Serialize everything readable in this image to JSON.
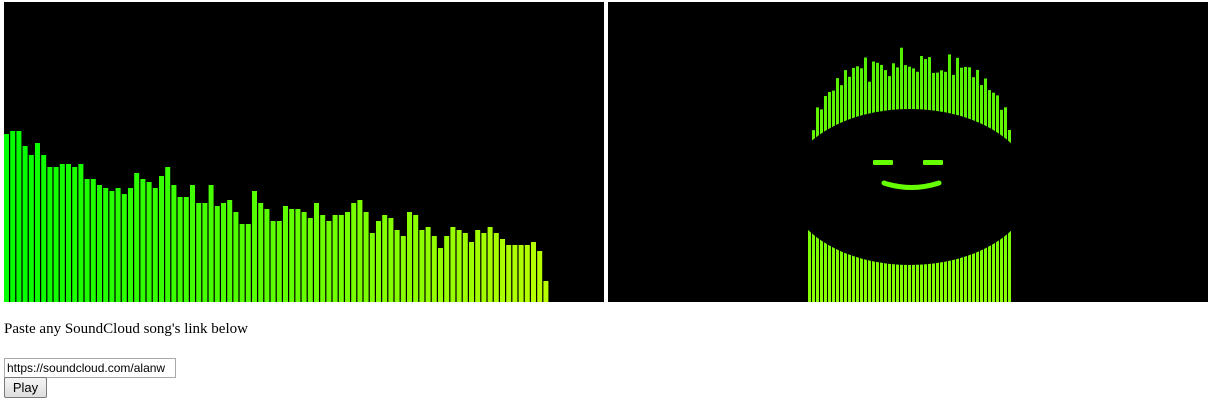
{
  "instructions": "Paste any SoundCloud song's link below",
  "url_input": {
    "value": "https://soundcloud.com/alanw"
  },
  "play_button": {
    "label": "Play"
  },
  "colors": {
    "background": "#000000",
    "bar_gradient_start": "#00ff00",
    "bar_gradient_end": "#ccff00",
    "face_green": "#66ff00"
  },
  "chart_data": {
    "type": "bar",
    "spectrum_levels": [
      0.56,
      0.57,
      0.57,
      0.52,
      0.49,
      0.53,
      0.49,
      0.45,
      0.45,
      0.46,
      0.46,
      0.45,
      0.46,
      0.41,
      0.41,
      0.39,
      0.38,
      0.37,
      0.38,
      0.36,
      0.38,
      0.43,
      0.41,
      0.4,
      0.38,
      0.42,
      0.45,
      0.39,
      0.35,
      0.35,
      0.39,
      0.33,
      0.33,
      0.39,
      0.32,
      0.33,
      0.34,
      0.3,
      0.26,
      0.26,
      0.37,
      0.33,
      0.31,
      0.27,
      0.27,
      0.32,
      0.31,
      0.31,
      0.3,
      0.28,
      0.33,
      0.29,
      0.27,
      0.29,
      0.29,
      0.3,
      0.33,
      0.34,
      0.3,
      0.23,
      0.27,
      0.29,
      0.28,
      0.24,
      0.22,
      0.3,
      0.29,
      0.24,
      0.25,
      0.22,
      0.18,
      0.22,
      0.25,
      0.24,
      0.23,
      0.2,
      0.24,
      0.23,
      0.25,
      0.23,
      0.21,
      0.19,
      0.19,
      0.19,
      0.19,
      0.2,
      0.17,
      0.07
    ]
  }
}
